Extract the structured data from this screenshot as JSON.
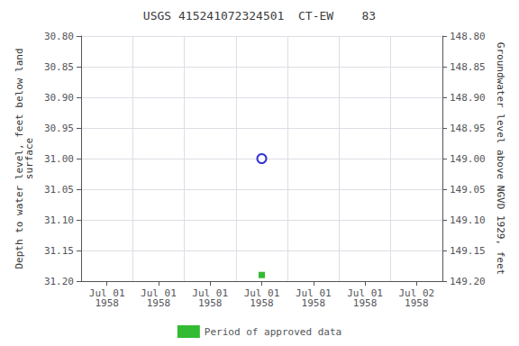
{
  "chart_data": {
    "type": "scatter",
    "title": "USGS 415241072324501  CT-EW    83",
    "ylabel": "Depth to water level, feet below land\nsurface",
    "y2label": "Groundwater level above NGVD 1929, feet",
    "categories": [
      "Jul 01\n1958",
      "Jul 01\n1958",
      "Jul 01\n1958",
      "Jul 01\n1958",
      "Jul 01\n1958",
      "Jul 01\n1958",
      "Jul 02\n1958"
    ],
    "series": [
      {
        "color": "#0000cc",
        "marker": "emptyCircle",
        "values": [
          null,
          null,
          null,
          31.0,
          null,
          null,
          null
        ]
      },
      {
        "name": "Period of approved data",
        "color": "#00aa00",
        "marker": "square",
        "values": [
          null,
          null,
          null,
          31.19,
          null,
          null,
          null
        ]
      }
    ],
    "ylim": [
      31.2,
      30.8
    ],
    "yticks": [
      {
        "value": 30.8,
        "label": "30.80"
      },
      {
        "value": 30.85,
        "label": "30.85"
      },
      {
        "value": 30.9,
        "label": "30.90"
      },
      {
        "value": 30.95,
        "label": "30.95"
      },
      {
        "value": 31.0,
        "label": "31.00"
      },
      {
        "value": 31.05,
        "label": "31.05"
      },
      {
        "value": 31.1,
        "label": "31.10"
      },
      {
        "value": 31.15,
        "label": "31.15"
      },
      {
        "value": 31.2,
        "label": "31.20"
      }
    ],
    "y2lim": [
      149.2,
      148.8
    ],
    "y2ticks": [
      {
        "value": 149.2,
        "label": "149.20"
      },
      {
        "value": 149.15,
        "label": "149.15"
      },
      {
        "value": 149.1,
        "label": "149.10"
      },
      {
        "value": 149.05,
        "label": "149.05"
      },
      {
        "value": 149.0,
        "label": "149.00"
      },
      {
        "value": 148.95,
        "label": "148.95"
      },
      {
        "value": 148.9,
        "label": "148.90"
      },
      {
        "value": 148.85,
        "label": "148.85"
      },
      {
        "value": 148.8,
        "label": "148.80"
      }
    ],
    "grid": true,
    "legend": "bottom"
  }
}
